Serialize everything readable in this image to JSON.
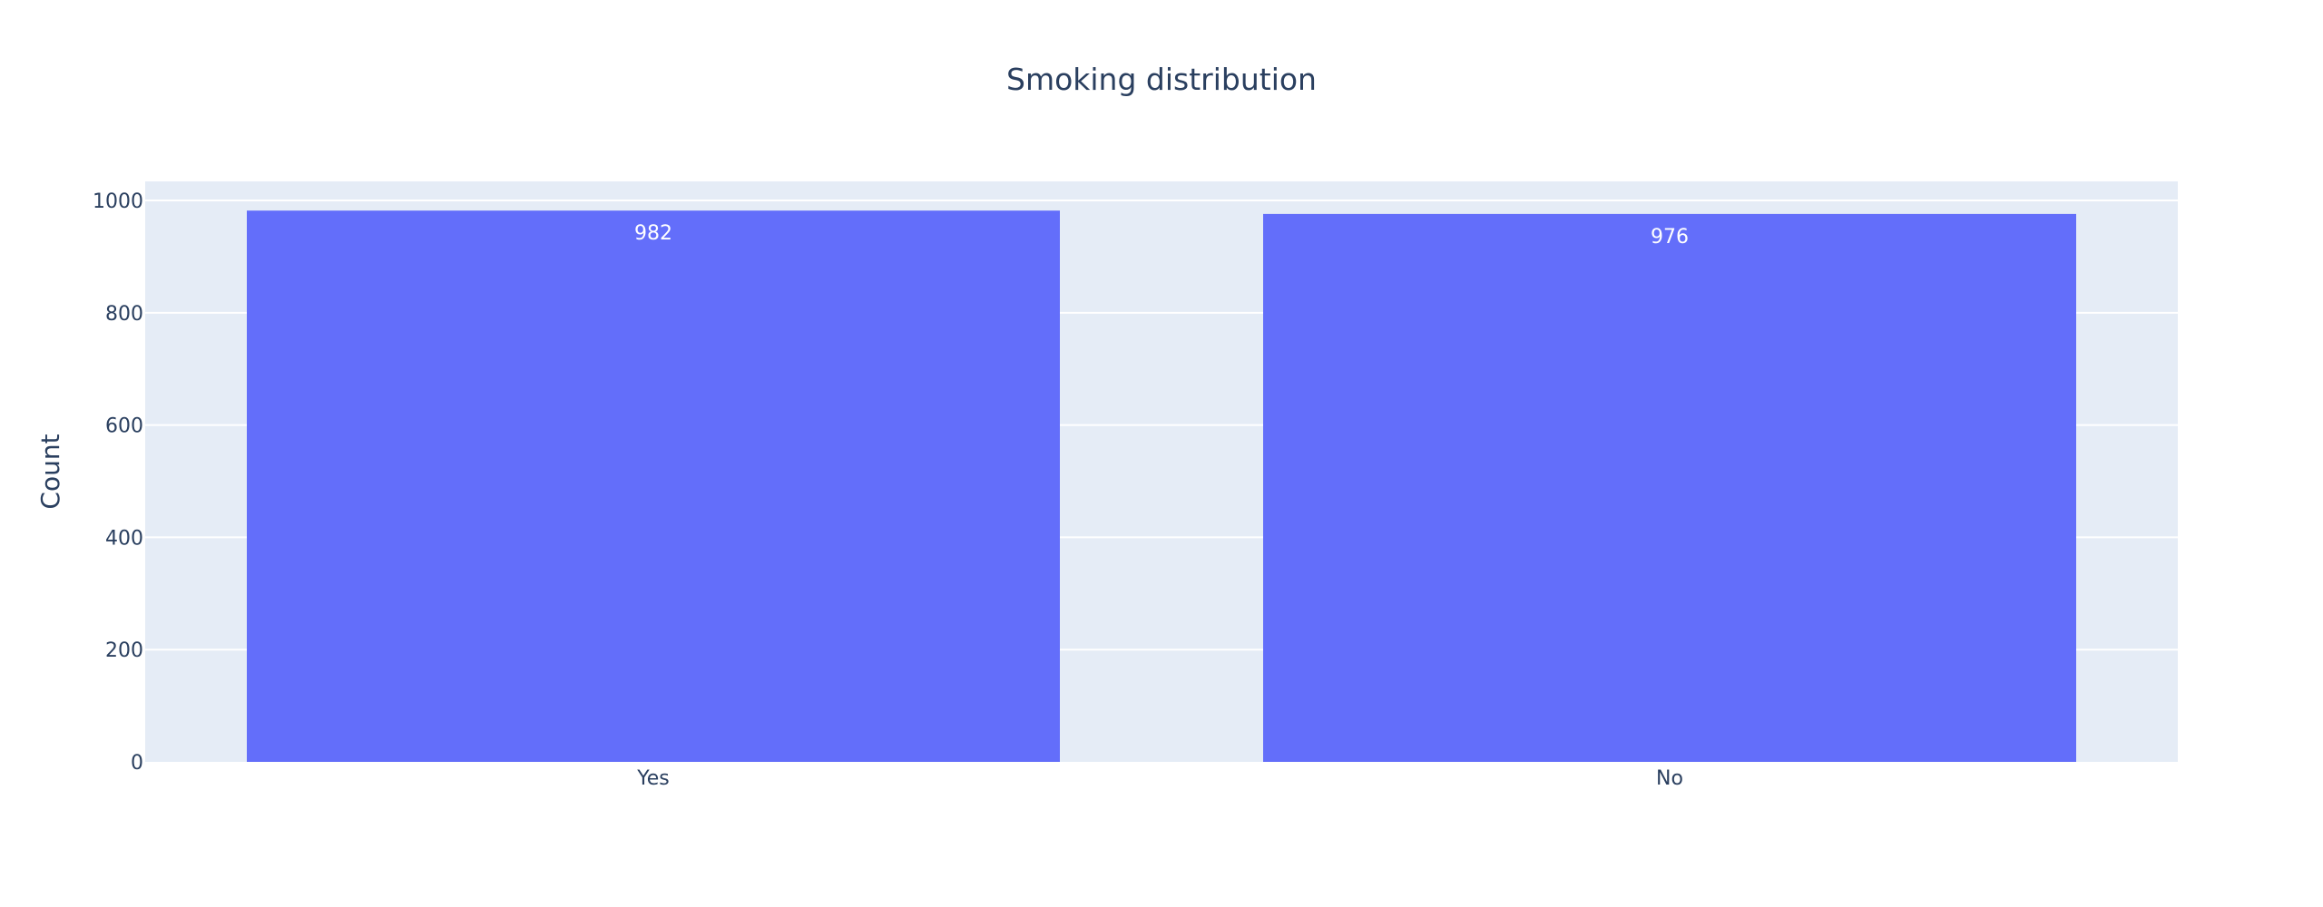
{
  "chart_data": {
    "type": "bar",
    "title": "Smoking distribution",
    "xlabel": "",
    "ylabel": "Count",
    "categories": [
      "Yes",
      "No"
    ],
    "values": [
      982,
      976
    ],
    "data_labels": [
      "982",
      "976"
    ],
    "ylim": [
      0,
      1034
    ],
    "yticks": [
      0,
      200,
      400,
      600,
      800,
      1000
    ],
    "ytick_labels": [
      "0",
      "200",
      "400",
      "600",
      "800",
      "1000"
    ],
    "grid": true,
    "legend": "none",
    "colors": {
      "bar": "#636efa",
      "plot_background": "#e5ecf6",
      "grid": "#ffffff",
      "text": "#2a3f5f",
      "bar_label": "#ffffff"
    }
  }
}
